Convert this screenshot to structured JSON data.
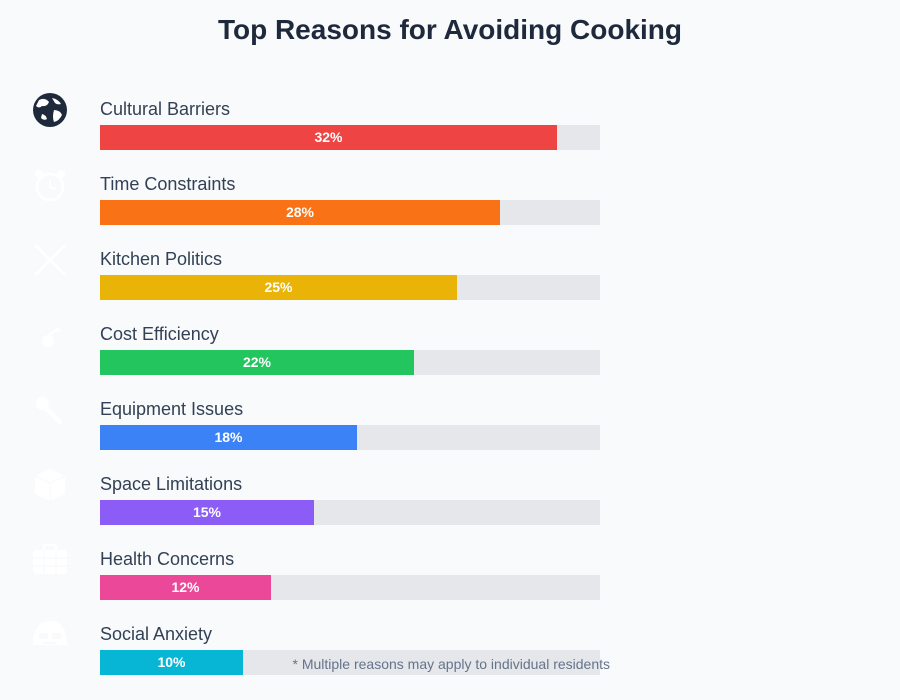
{
  "chart_data": {
    "type": "bar",
    "orientation": "horizontal",
    "title": "Top Reasons for Avoiding Cooking",
    "xlim": [
      0,
      35
    ],
    "grid": false,
    "categories": [
      "Cultural Barriers",
      "Time Constraints",
      "Kitchen Politics",
      "Cost Efficiency",
      "Equipment Issues",
      "Space Limitations",
      "Health Concerns",
      "Social Anxiety"
    ],
    "values": [
      32,
      28,
      25,
      22,
      18,
      15,
      12,
      10
    ],
    "value_labels": [
      "32%",
      "28%",
      "25%",
      "22%",
      "18%",
      "15%",
      "12%",
      "10%"
    ],
    "colors": [
      "#ef4444",
      "#f97316",
      "#eab308",
      "#22c55e",
      "#3b82f6",
      "#8b5cf6",
      "#ec4899",
      "#06b6d4"
    ],
    "icons": [
      "globe-icon",
      "alarm-clock-icon",
      "crossed-knives-icon",
      "money-bag-icon",
      "wrench-icon",
      "box-icon",
      "medical-kit-icon",
      "anxious-face-icon"
    ],
    "footnote": "* Multiple reasons may apply to individual residents"
  }
}
